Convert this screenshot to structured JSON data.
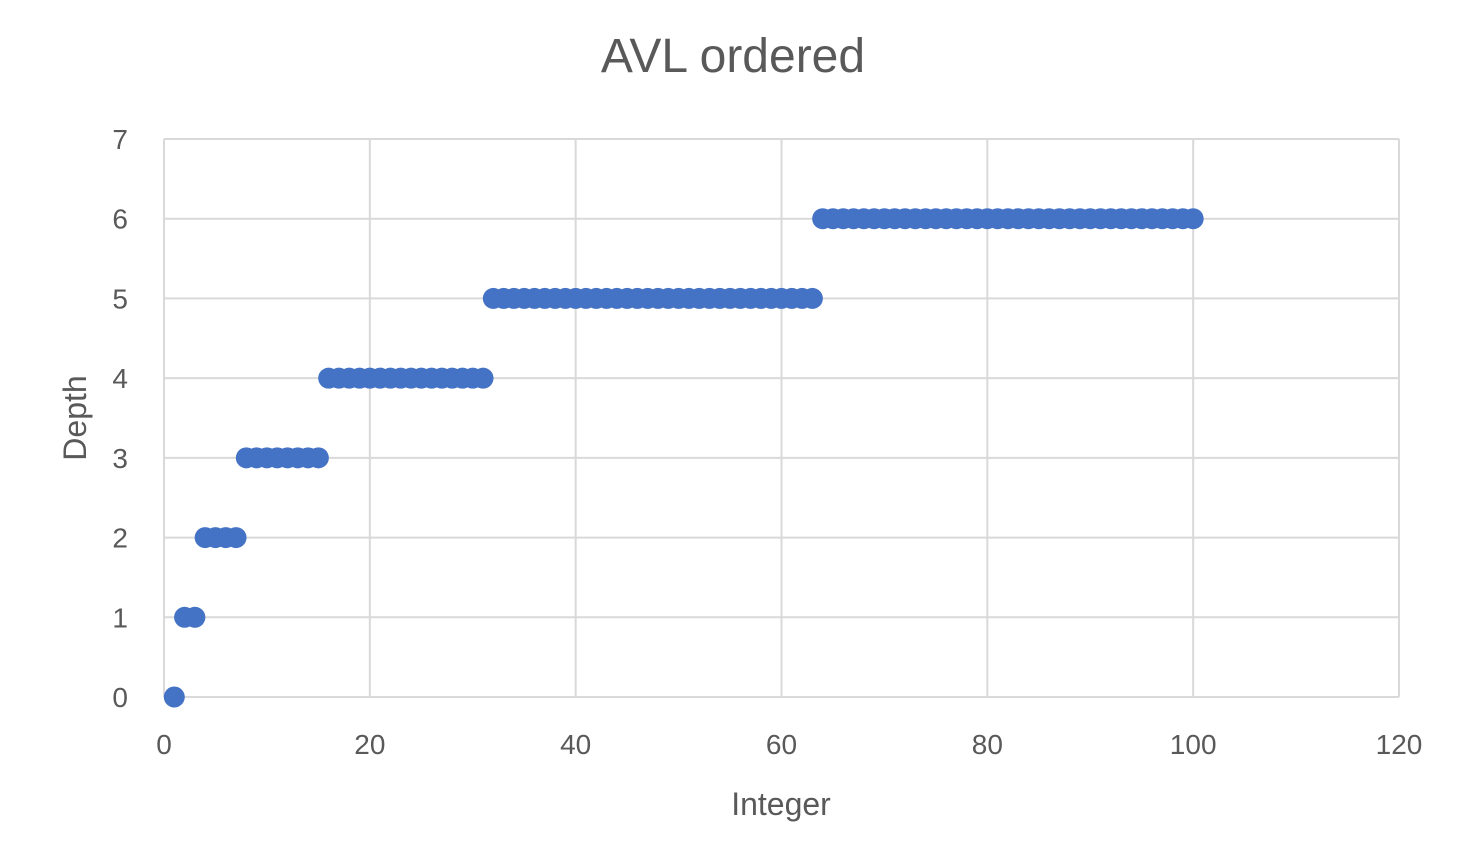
{
  "chart_data": {
    "type": "scatter",
    "title": "AVL ordered",
    "xlabel": "Integer",
    "ylabel": "Depth",
    "xlim": [
      0,
      120
    ],
    "ylim": [
      0,
      7
    ],
    "xticks": [
      0,
      20,
      40,
      60,
      80,
      100,
      120
    ],
    "yticks": [
      0,
      1,
      2,
      3,
      4,
      5,
      6,
      7
    ],
    "grid": true,
    "legend": "none",
    "series": [
      {
        "color": "#4472C4",
        "points": [
          [
            1,
            0
          ],
          [
            2,
            1
          ],
          [
            3,
            1
          ],
          [
            4,
            2
          ],
          [
            5,
            2
          ],
          [
            6,
            2
          ],
          [
            7,
            2
          ],
          [
            8,
            3
          ],
          [
            9,
            3
          ],
          [
            10,
            3
          ],
          [
            11,
            3
          ],
          [
            12,
            3
          ],
          [
            13,
            3
          ],
          [
            14,
            3
          ],
          [
            15,
            3
          ],
          [
            16,
            4
          ],
          [
            17,
            4
          ],
          [
            18,
            4
          ],
          [
            19,
            4
          ],
          [
            20,
            4
          ],
          [
            21,
            4
          ],
          [
            22,
            4
          ],
          [
            23,
            4
          ],
          [
            24,
            4
          ],
          [
            25,
            4
          ],
          [
            26,
            4
          ],
          [
            27,
            4
          ],
          [
            28,
            4
          ],
          [
            29,
            4
          ],
          [
            30,
            4
          ],
          [
            31,
            4
          ],
          [
            32,
            5
          ],
          [
            33,
            5
          ],
          [
            34,
            5
          ],
          [
            35,
            5
          ],
          [
            36,
            5
          ],
          [
            37,
            5
          ],
          [
            38,
            5
          ],
          [
            39,
            5
          ],
          [
            40,
            5
          ],
          [
            41,
            5
          ],
          [
            42,
            5
          ],
          [
            43,
            5
          ],
          [
            44,
            5
          ],
          [
            45,
            5
          ],
          [
            46,
            5
          ],
          [
            47,
            5
          ],
          [
            48,
            5
          ],
          [
            49,
            5
          ],
          [
            50,
            5
          ],
          [
            51,
            5
          ],
          [
            52,
            5
          ],
          [
            53,
            5
          ],
          [
            54,
            5
          ],
          [
            55,
            5
          ],
          [
            56,
            5
          ],
          [
            57,
            5
          ],
          [
            58,
            5
          ],
          [
            59,
            5
          ],
          [
            60,
            5
          ],
          [
            61,
            5
          ],
          [
            62,
            5
          ],
          [
            63,
            5
          ],
          [
            64,
            6
          ],
          [
            65,
            6
          ],
          [
            66,
            6
          ],
          [
            67,
            6
          ],
          [
            68,
            6
          ],
          [
            69,
            6
          ],
          [
            70,
            6
          ],
          [
            71,
            6
          ],
          [
            72,
            6
          ],
          [
            73,
            6
          ],
          [
            74,
            6
          ],
          [
            75,
            6
          ],
          [
            76,
            6
          ],
          [
            77,
            6
          ],
          [
            78,
            6
          ],
          [
            79,
            6
          ],
          [
            80,
            6
          ],
          [
            81,
            6
          ],
          [
            82,
            6
          ],
          [
            83,
            6
          ],
          [
            84,
            6
          ],
          [
            85,
            6
          ],
          [
            86,
            6
          ],
          [
            87,
            6
          ],
          [
            88,
            6
          ],
          [
            89,
            6
          ],
          [
            90,
            6
          ],
          [
            91,
            6
          ],
          [
            92,
            6
          ],
          [
            93,
            6
          ],
          [
            94,
            6
          ],
          [
            95,
            6
          ],
          [
            96,
            6
          ],
          [
            97,
            6
          ],
          [
            98,
            6
          ],
          [
            99,
            6
          ],
          [
            100,
            6
          ]
        ]
      }
    ]
  }
}
